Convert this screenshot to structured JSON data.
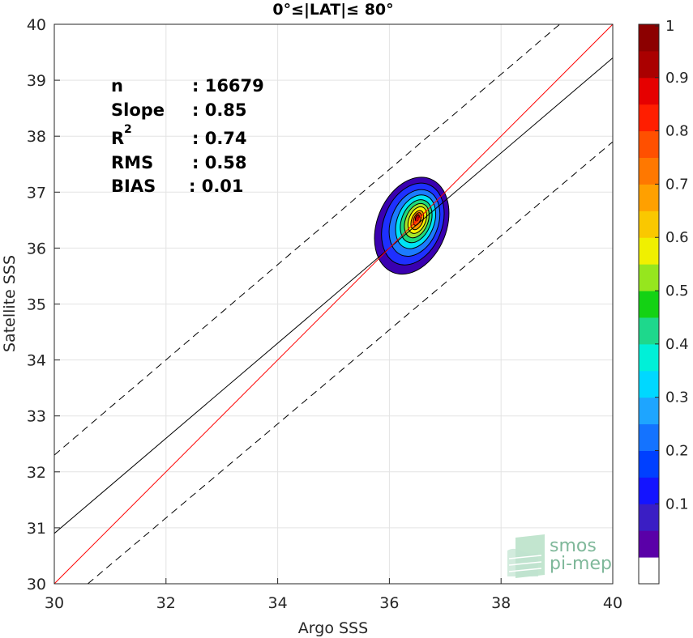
{
  "chart_data": {
    "type": "contour",
    "title": "0°≤|LAT|≤ 80°",
    "xlabel": "Argo SSS",
    "ylabel": "Satellite SSS",
    "xlim": [
      30,
      40
    ],
    "ylim": [
      30,
      40
    ],
    "xticks": [
      "30",
      "32",
      "34",
      "36",
      "38",
      "40"
    ],
    "yticks": [
      "30",
      "31",
      "32",
      "33",
      "34",
      "35",
      "36",
      "37",
      "38",
      "39",
      "40"
    ],
    "grid": true,
    "stats": {
      "n_label": "n",
      "n_value": ": 16679",
      "slope_label": "Slope",
      "slope_value": ": 0.85",
      "r2_label": "R",
      "r2_sup": "2",
      "r2_value": ": 0.74",
      "rms_label": "RMS",
      "rms_value": ": 0.58",
      "bias_label": "BIAS",
      "bias_value": ": 0.01"
    },
    "lines": {
      "identity": {
        "x": [
          30,
          40
        ],
        "y": [
          30,
          40
        ],
        "color": "#ff0000"
      },
      "fit": {
        "x": [
          30,
          40
        ],
        "y": [
          30.9,
          39.4
        ],
        "color": "#000000"
      },
      "upper_dashed": {
        "x": [
          30,
          39.05
        ],
        "y": [
          32.3,
          40
        ]
      },
      "lower_dashed": {
        "x": [
          30.6,
          40
        ],
        "y": [
          30,
          37.9
        ]
      }
    },
    "density_peak": {
      "x": 36.5,
      "y": 36.5
    },
    "contour_levels": [
      {
        "level": 0.05,
        "color": "#3a00b0",
        "cx": 36.4,
        "cy": 36.4,
        "rx": 0.62,
        "ry": 0.9
      },
      {
        "level": 0.15,
        "color": "#1e30ff",
        "cx": 36.42,
        "cy": 36.43,
        "rx": 0.52,
        "ry": 0.76
      },
      {
        "level": 0.25,
        "color": "#1c7bff",
        "cx": 36.45,
        "cy": 36.45,
        "rx": 0.42,
        "ry": 0.62
      },
      {
        "level": 0.35,
        "color": "#00e3f5",
        "cx": 36.47,
        "cy": 36.47,
        "rx": 0.33,
        "ry": 0.5
      },
      {
        "level": 0.45,
        "color": "#1ed97c",
        "cx": 36.48,
        "cy": 36.48,
        "rx": 0.26,
        "ry": 0.4
      },
      {
        "level": 0.55,
        "color": "#a6e52a",
        "cx": 36.49,
        "cy": 36.49,
        "rx": 0.2,
        "ry": 0.32
      },
      {
        "level": 0.65,
        "color": "#fff200",
        "cx": 36.5,
        "cy": 36.5,
        "rx": 0.15,
        "ry": 0.25
      },
      {
        "level": 0.75,
        "color": "#ff9a00",
        "cx": 36.5,
        "cy": 36.5,
        "rx": 0.1,
        "ry": 0.18
      },
      {
        "level": 0.85,
        "color": "#ff4a00",
        "cx": 36.5,
        "cy": 36.52,
        "rx": 0.06,
        "ry": 0.12
      },
      {
        "level": 0.95,
        "color": "#c40000",
        "cx": 36.5,
        "cy": 36.54,
        "rx": 0.03,
        "ry": 0.06
      }
    ],
    "colorbar": {
      "ticks": [
        "0.1",
        "0.2",
        "0.3",
        "0.4",
        "0.5",
        "0.6",
        "0.7",
        "0.8",
        "0.9",
        "1"
      ],
      "tick_values": [
        0.1,
        0.2,
        0.3,
        0.4,
        0.5,
        0.6,
        0.7,
        0.8,
        0.9,
        1.0
      ],
      "min": 0,
      "max": 1,
      "bands": [
        "#ffffff",
        "#5a00a8",
        "#3a1ec4",
        "#1414ff",
        "#0040ff",
        "#1473ff",
        "#1ea5ff",
        "#00d8ff",
        "#00f0d8",
        "#1ed88c",
        "#14d214",
        "#96e61e",
        "#f0f000",
        "#fac800",
        "#ffa000",
        "#ff7800",
        "#ff5000",
        "#ff1e00",
        "#e60000",
        "#aa0000",
        "#8c0000"
      ]
    }
  },
  "logo": {
    "line1": "smos",
    "line2": "pi-mep"
  }
}
